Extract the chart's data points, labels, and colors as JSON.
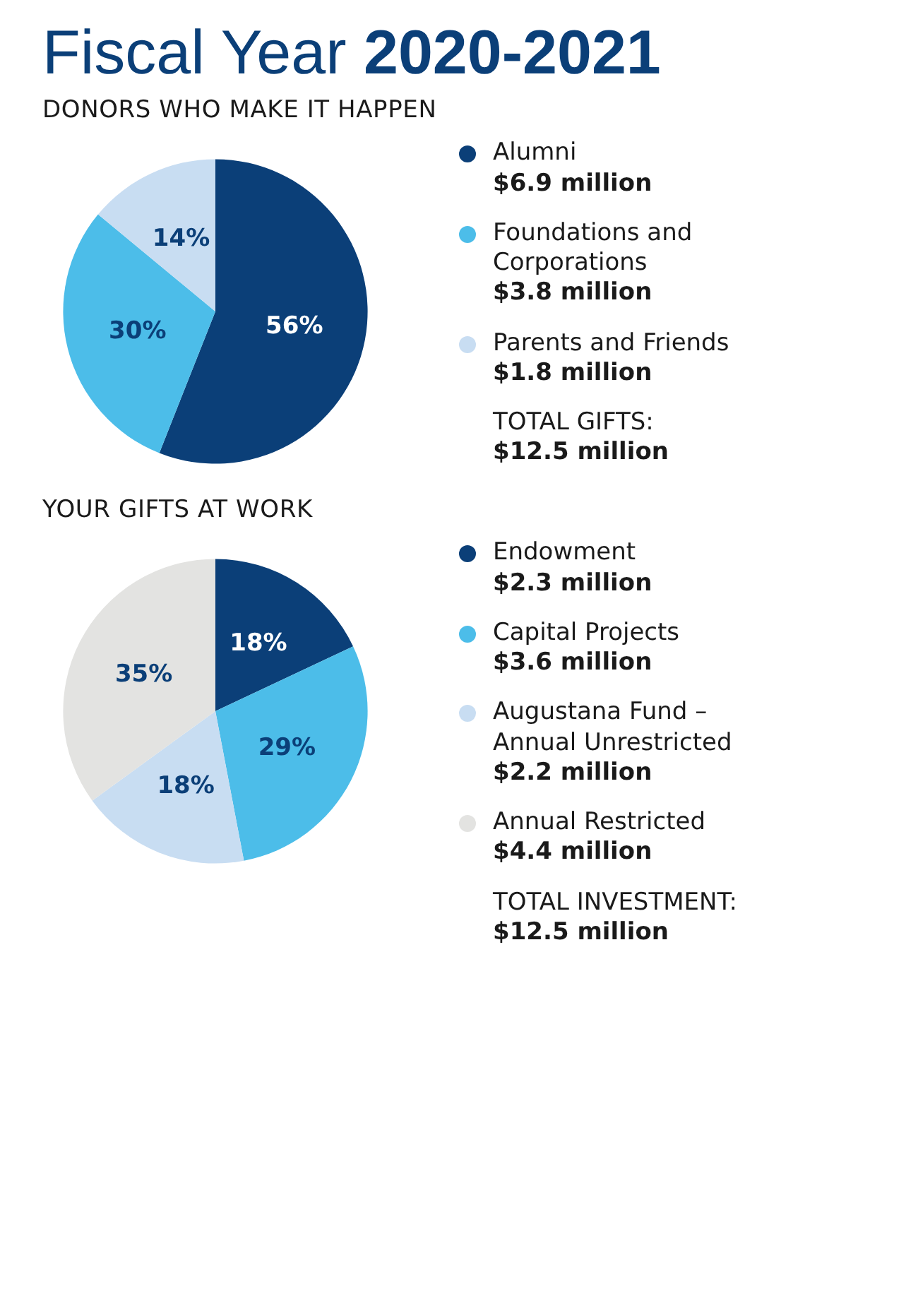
{
  "chart_data": [
    {
      "type": "pie",
      "title": "Fiscal Year 2020-2021",
      "subtitle": "DONORS WHO MAKE IT HAPPEN",
      "categories": [
        "Alumni",
        "Foundations and Corporations",
        "Parents and Friends"
      ],
      "values": [
        56,
        30,
        14
      ],
      "value_labels": [
        "56%",
        "30%",
        "14%"
      ],
      "colors": [
        "#0b3f78",
        "#4cbde9",
        "#c8ddf2"
      ],
      "legend": "right",
      "annotations": [
        "$6.9 million",
        "$3.8 million",
        "$1.8 million",
        "TOTAL GIFTS:",
        "$12.5 million"
      ]
    },
    {
      "type": "pie",
      "title": "YOUR GIFTS AT WORK",
      "categories": [
        "Endowment",
        "Capital Projects",
        "Augustana Fund – Annual Unrestricted",
        "Annual Restricted"
      ],
      "values": [
        18,
        29,
        18,
        35
      ],
      "value_labels": [
        "18%",
        "29%",
        "18%",
        "35%"
      ],
      "colors": [
        "#0b3f78",
        "#4cbde9",
        "#c8ddf2",
        "#e3e3e1"
      ],
      "legend": "right",
      "annotations": [
        "$2.3 million",
        "$3.6 million",
        "$2.2 million",
        "$4.4 million",
        "TOTAL INVESTMENT:",
        "$12.5 million"
      ]
    }
  ]
}
